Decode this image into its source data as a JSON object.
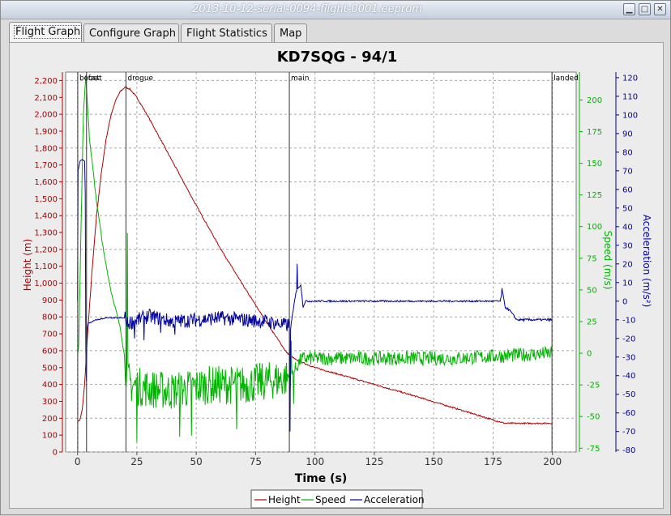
{
  "window": {
    "title": "2013-10-12-serial-0094-flight-0001.eeprom"
  },
  "tabs": [
    {
      "label": "Flight Graph",
      "active": true
    },
    {
      "label": "Configure Graph",
      "active": false
    },
    {
      "label": "Flight Statistics",
      "active": false
    },
    {
      "label": "Map",
      "active": false
    }
  ],
  "colors": {
    "height": "#b20000",
    "speed": "#00b400",
    "acceleration": "#0000a0",
    "grid": "#9a9a9a"
  },
  "chart_data": {
    "type": "line",
    "title": "KD7SQG - 94/1",
    "xlabel": "Time (s)",
    "xlim": [
      -5,
      210
    ],
    "xticks": [
      0,
      25,
      50,
      75,
      100,
      125,
      150,
      175,
      200
    ],
    "axes": {
      "height": {
        "label": "Height (m)",
        "lim": [
          0,
          2250
        ],
        "ticks": [
          0,
          100,
          200,
          300,
          400,
          500,
          600,
          700,
          800,
          900,
          1000,
          1100,
          1200,
          1300,
          1400,
          1500,
          1600,
          1700,
          1800,
          1900,
          2000,
          2100,
          2200
        ],
        "tick_labels": [
          "0",
          "100",
          "200",
          "300",
          "400",
          "500",
          "600",
          "700",
          "800",
          "900",
          "1,000",
          "1,100",
          "1,200",
          "1,300",
          "1,400",
          "1,500",
          "1,600",
          "1,700",
          "1,800",
          "1,900",
          "2,000",
          "2,100",
          "2,200"
        ]
      },
      "speed": {
        "label": "Speed (m/s)",
        "lim": [
          -78,
          222
        ],
        "ticks": [
          -75,
          -50,
          -25,
          0,
          25,
          50,
          75,
          100,
          125,
          150,
          175,
          200
        ]
      },
      "acceleration": {
        "label": "Acceleration (m/s²)",
        "lim": [
          -81,
          123
        ],
        "ticks": [
          -80,
          -70,
          -60,
          -50,
          -40,
          -30,
          -20,
          -10,
          0,
          10,
          20,
          30,
          40,
          50,
          60,
          70,
          80,
          90,
          100,
          110,
          120
        ]
      }
    },
    "events": [
      {
        "time": 0.1,
        "label": "boost"
      },
      {
        "time": 3.8,
        "label": "fast"
      },
      {
        "time": 20.4,
        "label": "drogue"
      },
      {
        "time": 89.2,
        "label": "main"
      },
      {
        "time": 199.8,
        "label": "landed"
      }
    ],
    "series": [
      {
        "name": "Height",
        "color": "#b20000",
        "axis": "height",
        "noise": 4,
        "points": [
          [
            0,
            180
          ],
          [
            1,
            190
          ],
          [
            2,
            250
          ],
          [
            3,
            400
          ],
          [
            4,
            650
          ],
          [
            6,
            1050
          ],
          [
            8,
            1400
          ],
          [
            10,
            1650
          ],
          [
            12,
            1850
          ],
          [
            14,
            1990
          ],
          [
            16,
            2080
          ],
          [
            18,
            2135
          ],
          [
            20,
            2160
          ],
          [
            22,
            2150
          ],
          [
            25,
            2100
          ],
          [
            30,
            1980
          ],
          [
            40,
            1720
          ],
          [
            50,
            1460
          ],
          [
            60,
            1210
          ],
          [
            70,
            980
          ],
          [
            80,
            760
          ],
          [
            88,
            590
          ],
          [
            92,
            545
          ],
          [
            100,
            500
          ],
          [
            120,
            420
          ],
          [
            140,
            340
          ],
          [
            160,
            255
          ],
          [
            175,
            190
          ],
          [
            180,
            170
          ],
          [
            200,
            170
          ]
        ]
      },
      {
        "name": "Speed",
        "color": "#00b400",
        "axis": "speed",
        "noise": 7,
        "points": [
          [
            0,
            0
          ],
          [
            0.5,
            5
          ],
          [
            1.5,
            100
          ],
          [
            2.5,
            190
          ],
          [
            3.5,
            220
          ],
          [
            5,
            170
          ],
          [
            8,
            120
          ],
          [
            11,
            80
          ],
          [
            14,
            50
          ],
          [
            18,
            20
          ],
          [
            20,
            -5
          ],
          [
            21,
            -20
          ],
          [
            23,
            -25
          ],
          [
            30,
            -28
          ],
          [
            40,
            -30
          ],
          [
            55,
            -25
          ],
          [
            70,
            -25
          ],
          [
            80,
            -22
          ],
          [
            88,
            -20
          ],
          [
            91,
            -15
          ],
          [
            94,
            -5
          ],
          [
            96,
            -4
          ],
          [
            130,
            -4
          ],
          [
            160,
            -4
          ],
          [
            180,
            -2
          ],
          [
            200,
            0
          ]
        ],
        "spikes": [
          [
            21,
            95
          ],
          [
            25,
            -70
          ],
          [
            43,
            -66
          ],
          [
            48,
            -65
          ],
          [
            67,
            -60
          ],
          [
            90,
            10
          ],
          [
            91,
            -40
          ]
        ]
      },
      {
        "name": "Acceleration",
        "color": "#0000a0",
        "axis": "acceleration",
        "noise": 3,
        "points": [
          [
            0,
            0
          ],
          [
            0.2,
            70
          ],
          [
            1,
            75
          ],
          [
            2,
            76
          ],
          [
            3.2,
            75
          ],
          [
            3.6,
            -60
          ],
          [
            4,
            -15
          ],
          [
            4.5,
            -12
          ],
          [
            8,
            -10
          ],
          [
            12,
            -9
          ],
          [
            15,
            -9
          ],
          [
            20,
            -9
          ],
          [
            21,
            -12
          ],
          [
            30,
            -8
          ],
          [
            40,
            -11
          ],
          [
            60,
            -9
          ],
          [
            80,
            -11
          ],
          [
            88,
            -13
          ],
          [
            90,
            -12
          ],
          [
            92,
            5
          ],
          [
            94,
            9
          ],
          [
            95,
            -3
          ],
          [
            96,
            0
          ],
          [
            130,
            0
          ],
          [
            178,
            0
          ],
          [
            179,
            5
          ],
          [
            180,
            -3
          ],
          [
            182,
            -5
          ],
          [
            185,
            -10
          ],
          [
            200,
            -10
          ]
        ],
        "spikes": [
          [
            9,
            -10
          ],
          [
            24,
            -20
          ],
          [
            28,
            -21
          ],
          [
            35,
            -17
          ],
          [
            41,
            -18
          ],
          [
            89.5,
            -70
          ],
          [
            92.5,
            20
          ],
          [
            178.8,
            7
          ]
        ]
      }
    ],
    "legend": {
      "position": "bottom",
      "entries": [
        "Height",
        "Speed",
        "Acceleration"
      ]
    },
    "grid": true
  }
}
